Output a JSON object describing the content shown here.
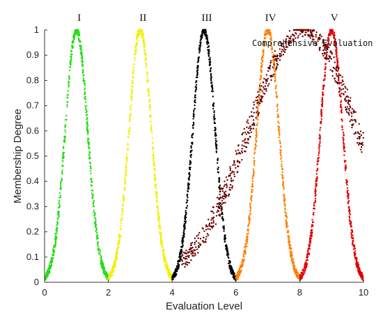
{
  "chart_data": {
    "type": "scatter",
    "title": "",
    "xlabel": "Evaluation Level",
    "ylabel": "Membership Degree",
    "xlim": [
      0,
      10
    ],
    "ylim": [
      0,
      1
    ],
    "xticks": [
      "0",
      "2",
      "4",
      "6",
      "8",
      "10"
    ],
    "yticks": [
      "0",
      "0.1",
      "0.2",
      "0.3",
      "0.4",
      "0.5",
      "0.6",
      "0.7",
      "0.8",
      "0.9",
      "1"
    ],
    "grid": false,
    "series": [
      {
        "name": "I",
        "center": 1,
        "spread": 0.35,
        "x_range": [
          0,
          2
        ],
        "color": "#22dd11"
      },
      {
        "name": "II",
        "center": 3,
        "spread": 0.35,
        "x_range": [
          2,
          4
        ],
        "color": "#f0f000"
      },
      {
        "name": "III",
        "center": 5,
        "spread": 0.35,
        "x_range": [
          4,
          6
        ],
        "color": "#000000"
      },
      {
        "name": "IV",
        "center": 7,
        "spread": 0.35,
        "x_range": [
          6,
          8
        ],
        "color": "#ff8000"
      },
      {
        "name": "V",
        "center": 9,
        "spread": 0.35,
        "x_range": [
          8,
          10
        ],
        "color": "#e00000"
      },
      {
        "name": "Comprehensive Evaluation",
        "center": 8.1,
        "spread": 1.7,
        "x_range": [
          4.3,
          10
        ],
        "color": "#6b0000"
      }
    ],
    "annotations": {
      "labels": [
        "I",
        "II",
        "III",
        "IV",
        "V"
      ],
      "comprehensive": "Comprehensive Evaluation"
    }
  }
}
